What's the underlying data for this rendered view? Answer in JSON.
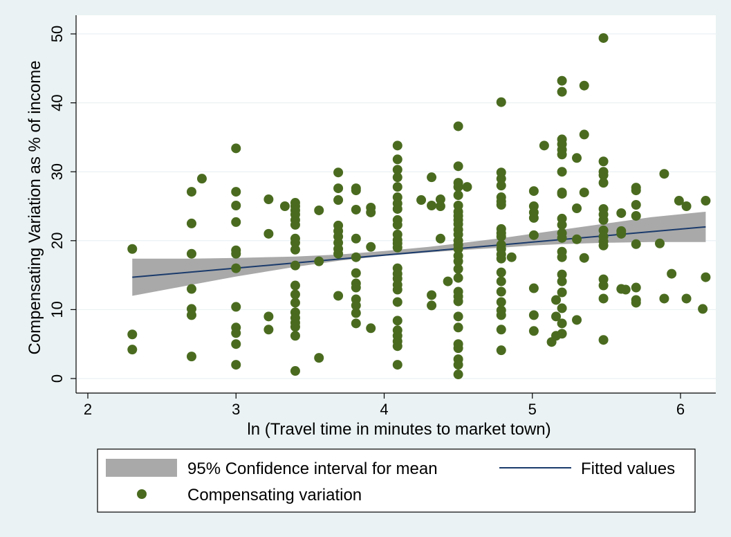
{
  "chart_data": {
    "type": "scatter",
    "title": "",
    "xlabel": "ln (Travel time in minutes to market town)",
    "ylabel": "Compensating Variation as % of income",
    "xlim": [
      2,
      6.2
    ],
    "ylim": [
      0,
      50
    ],
    "xticks": [
      2,
      3,
      4,
      5,
      6
    ],
    "yticks": [
      0,
      10,
      20,
      30,
      40,
      50
    ],
    "xtick_labels": [
      "2",
      "3",
      "4",
      "5",
      "6"
    ],
    "ytick_labels": [
      "0",
      "10",
      "20",
      "30",
      "40",
      "50"
    ],
    "grid": "horizontal",
    "legend_position": "bottom",
    "colors": {
      "background": "#eaf2f3",
      "plot_area": "#ffffff",
      "points": "#4a6b1f",
      "fit_line": "#1a3a6b",
      "ci_band": "#a9a9a9",
      "grid": "#e6eef0"
    },
    "series": [
      {
        "name": "95% Confidence interval for mean",
        "kind": "band",
        "x": [
          2.3,
          2.7,
          3.0,
          3.4,
          3.7,
          4.0,
          4.3,
          4.5,
          4.8,
          5.0,
          5.2,
          5.5,
          5.8,
          6.17
        ],
        "lower": [
          12.0,
          13.6,
          14.8,
          16.2,
          17.1,
          17.8,
          18.3,
          18.6,
          19.0,
          19.3,
          19.5,
          19.7,
          19.8,
          19.8
        ],
        "upper": [
          17.4,
          17.4,
          17.5,
          17.7,
          18.0,
          18.5,
          19.1,
          19.6,
          20.4,
          21.0,
          21.6,
          22.5,
          23.4,
          24.2
        ]
      },
      {
        "name": "Fitted values",
        "kind": "line",
        "x": [
          2.3,
          6.17
        ],
        "y": [
          14.7,
          22.0
        ]
      },
      {
        "name": "Compensating variation",
        "kind": "scatter",
        "points": [
          [
            2.3,
            18.8
          ],
          [
            2.3,
            6.4
          ],
          [
            2.3,
            4.2
          ],
          [
            2.7,
            27.1
          ],
          [
            2.7,
            22.5
          ],
          [
            2.7,
            18.1
          ],
          [
            2.7,
            13.0
          ],
          [
            2.7,
            10.1
          ],
          [
            2.7,
            9.2
          ],
          [
            2.7,
            3.2
          ],
          [
            2.77,
            29.0
          ],
          [
            3.0,
            33.4
          ],
          [
            3.0,
            27.1
          ],
          [
            3.0,
            25.1
          ],
          [
            3.0,
            22.7
          ],
          [
            3.0,
            18.6
          ],
          [
            3.0,
            18.1
          ],
          [
            3.0,
            16.0
          ],
          [
            3.0,
            10.4
          ],
          [
            3.0,
            7.4
          ],
          [
            3.0,
            6.6
          ],
          [
            3.0,
            5.0
          ],
          [
            3.0,
            2.0
          ],
          [
            3.22,
            26.0
          ],
          [
            3.22,
            21.0
          ],
          [
            3.22,
            9.0
          ],
          [
            3.22,
            7.1
          ],
          [
            3.33,
            25.0
          ],
          [
            3.4,
            25.5
          ],
          [
            3.4,
            25.0
          ],
          [
            3.4,
            24.4
          ],
          [
            3.4,
            23.8
          ],
          [
            3.4,
            23.0
          ],
          [
            3.4,
            22.3
          ],
          [
            3.4,
            20.3
          ],
          [
            3.4,
            19.7
          ],
          [
            3.4,
            18.7
          ],
          [
            3.4,
            16.4
          ],
          [
            3.4,
            13.5
          ],
          [
            3.4,
            12.2
          ],
          [
            3.4,
            11.0
          ],
          [
            3.4,
            9.6
          ],
          [
            3.4,
            8.8
          ],
          [
            3.4,
            8.1
          ],
          [
            3.4,
            7.5
          ],
          [
            3.4,
            6.2
          ],
          [
            3.4,
            1.1
          ],
          [
            3.56,
            24.4
          ],
          [
            3.56,
            17.0
          ],
          [
            3.56,
            3.0
          ],
          [
            3.69,
            29.9
          ],
          [
            3.69,
            27.6
          ],
          [
            3.69,
            25.9
          ],
          [
            3.69,
            22.2
          ],
          [
            3.69,
            21.4
          ],
          [
            3.69,
            20.6
          ],
          [
            3.69,
            19.7
          ],
          [
            3.69,
            18.8
          ],
          [
            3.69,
            18.1
          ],
          [
            3.69,
            12.0
          ],
          [
            3.81,
            27.6
          ],
          [
            3.81,
            27.3
          ],
          [
            3.81,
            24.5
          ],
          [
            3.81,
            20.3
          ],
          [
            3.81,
            17.6
          ],
          [
            3.81,
            15.3
          ],
          [
            3.81,
            13.8
          ],
          [
            3.81,
            13.2
          ],
          [
            3.81,
            11.5
          ],
          [
            3.81,
            10.6
          ],
          [
            3.81,
            9.5
          ],
          [
            3.81,
            8.0
          ],
          [
            3.91,
            24.8
          ],
          [
            3.91,
            24.1
          ],
          [
            3.91,
            19.1
          ],
          [
            3.91,
            7.3
          ],
          [
            4.09,
            33.8
          ],
          [
            4.09,
            31.8
          ],
          [
            4.09,
            30.3
          ],
          [
            4.09,
            29.2
          ],
          [
            4.09,
            27.8
          ],
          [
            4.09,
            26.3
          ],
          [
            4.09,
            25.4
          ],
          [
            4.09,
            24.6
          ],
          [
            4.09,
            23.0
          ],
          [
            4.09,
            22.3
          ],
          [
            4.09,
            20.9
          ],
          [
            4.09,
            20.1
          ],
          [
            4.09,
            19.6
          ],
          [
            4.09,
            19.0
          ],
          [
            4.09,
            16.0
          ],
          [
            4.09,
            15.2
          ],
          [
            4.09,
            14.5
          ],
          [
            4.09,
            13.6
          ],
          [
            4.09,
            12.9
          ],
          [
            4.09,
            11.1
          ],
          [
            4.09,
            8.4
          ],
          [
            4.09,
            7.0
          ],
          [
            4.09,
            6.2
          ],
          [
            4.09,
            5.4
          ],
          [
            4.09,
            4.7
          ],
          [
            4.09,
            2.0
          ],
          [
            4.25,
            25.9
          ],
          [
            4.32,
            29.2
          ],
          [
            4.32,
            25.1
          ],
          [
            4.32,
            12.1
          ],
          [
            4.32,
            10.6
          ],
          [
            4.38,
            26.0
          ],
          [
            4.38,
            25.0
          ],
          [
            4.38,
            20.3
          ],
          [
            4.43,
            14.1
          ],
          [
            4.5,
            36.6
          ],
          [
            4.5,
            30.8
          ],
          [
            4.5,
            28.4
          ],
          [
            4.5,
            27.8
          ],
          [
            4.5,
            26.6
          ],
          [
            4.5,
            25.1
          ],
          [
            4.5,
            24.2
          ],
          [
            4.5,
            23.6
          ],
          [
            4.5,
            23.0
          ],
          [
            4.5,
            22.4
          ],
          [
            4.5,
            21.6
          ],
          [
            4.5,
            20.9
          ],
          [
            4.5,
            20.0
          ],
          [
            4.5,
            19.4
          ],
          [
            4.5,
            18.8
          ],
          [
            4.5,
            17.8
          ],
          [
            4.5,
            17.0
          ],
          [
            4.5,
            15.9
          ],
          [
            4.5,
            14.6
          ],
          [
            4.5,
            12.6
          ],
          [
            4.5,
            11.9
          ],
          [
            4.5,
            11.2
          ],
          [
            4.5,
            9.0
          ],
          [
            4.5,
            7.4
          ],
          [
            4.5,
            5.0
          ],
          [
            4.5,
            4.4
          ],
          [
            4.5,
            2.8
          ],
          [
            4.5,
            2.0
          ],
          [
            4.5,
            0.6
          ],
          [
            4.56,
            27.8
          ],
          [
            4.79,
            40.1
          ],
          [
            4.79,
            29.9
          ],
          [
            4.79,
            29.0
          ],
          [
            4.79,
            28.0
          ],
          [
            4.79,
            26.3
          ],
          [
            4.79,
            25.7
          ],
          [
            4.79,
            25.2
          ],
          [
            4.79,
            21.7
          ],
          [
            4.79,
            21.1
          ],
          [
            4.79,
            20.6
          ],
          [
            4.79,
            19.4
          ],
          [
            4.79,
            18.8
          ],
          [
            4.79,
            18.0
          ],
          [
            4.79,
            17.4
          ],
          [
            4.79,
            15.4
          ],
          [
            4.79,
            14.1
          ],
          [
            4.79,
            12.6
          ],
          [
            4.79,
            11.1
          ],
          [
            4.79,
            9.9
          ],
          [
            4.79,
            9.2
          ],
          [
            4.79,
            7.1
          ],
          [
            4.79,
            4.1
          ],
          [
            4.86,
            17.6
          ],
          [
            5.01,
            27.2
          ],
          [
            5.01,
            25.0
          ],
          [
            5.01,
            24.1
          ],
          [
            5.01,
            23.3
          ],
          [
            5.01,
            20.8
          ],
          [
            5.01,
            13.1
          ],
          [
            5.01,
            9.2
          ],
          [
            5.01,
            6.9
          ],
          [
            5.08,
            33.8
          ],
          [
            5.13,
            5.3
          ],
          [
            5.16,
            11.4
          ],
          [
            5.16,
            9.0
          ],
          [
            5.16,
            6.2
          ],
          [
            5.2,
            43.2
          ],
          [
            5.2,
            41.6
          ],
          [
            5.2,
            34.7
          ],
          [
            5.2,
            34.0
          ],
          [
            5.2,
            33.2
          ],
          [
            5.2,
            32.5
          ],
          [
            5.2,
            30.0
          ],
          [
            5.2,
            27.0
          ],
          [
            5.2,
            26.8
          ],
          [
            5.2,
            23.2
          ],
          [
            5.2,
            22.3
          ],
          [
            5.2,
            21.1
          ],
          [
            5.2,
            20.4
          ],
          [
            5.2,
            18.4
          ],
          [
            5.2,
            17.6
          ],
          [
            5.2,
            15.1
          ],
          [
            5.2,
            14.1
          ],
          [
            5.2,
            12.5
          ],
          [
            5.2,
            10.2
          ],
          [
            5.2,
            8.0
          ],
          [
            5.2,
            6.5
          ],
          [
            5.3,
            32.0
          ],
          [
            5.3,
            24.7
          ],
          [
            5.3,
            20.2
          ],
          [
            5.3,
            8.5
          ],
          [
            5.35,
            42.5
          ],
          [
            5.35,
            35.4
          ],
          [
            5.35,
            27.0
          ],
          [
            5.35,
            17.5
          ],
          [
            5.48,
            49.4
          ],
          [
            5.48,
            31.5
          ],
          [
            5.48,
            30.0
          ],
          [
            5.48,
            29.5
          ],
          [
            5.48,
            28.4
          ],
          [
            5.48,
            24.6
          ],
          [
            5.48,
            23.8
          ],
          [
            5.48,
            23.0
          ],
          [
            5.48,
            21.5
          ],
          [
            5.48,
            20.6
          ],
          [
            5.48,
            19.9
          ],
          [
            5.48,
            19.3
          ],
          [
            5.48,
            14.4
          ],
          [
            5.48,
            13.5
          ],
          [
            5.48,
            11.6
          ],
          [
            5.48,
            5.6
          ],
          [
            5.6,
            24.0
          ],
          [
            5.6,
            21.4
          ],
          [
            5.6,
            21.0
          ],
          [
            5.6,
            13.0
          ],
          [
            5.63,
            12.9
          ],
          [
            5.7,
            27.7
          ],
          [
            5.7,
            27.3
          ],
          [
            5.7,
            25.2
          ],
          [
            5.7,
            23.6
          ],
          [
            5.7,
            19.5
          ],
          [
            5.7,
            13.2
          ],
          [
            5.7,
            11.4
          ],
          [
            5.7,
            11.0
          ],
          [
            5.86,
            19.6
          ],
          [
            5.89,
            29.7
          ],
          [
            5.89,
            11.6
          ],
          [
            5.94,
            15.2
          ],
          [
            5.99,
            25.8
          ],
          [
            6.04,
            25.0
          ],
          [
            6.04,
            11.6
          ],
          [
            6.15,
            10.1
          ],
          [
            6.17,
            25.8
          ],
          [
            6.17,
            14.7
          ]
        ]
      }
    ]
  },
  "legend": {
    "items": [
      {
        "label": "95% Confidence interval for mean",
        "kind": "band"
      },
      {
        "label": "Fitted values",
        "kind": "line"
      },
      {
        "label": "Compensating variation",
        "kind": "marker"
      }
    ]
  }
}
